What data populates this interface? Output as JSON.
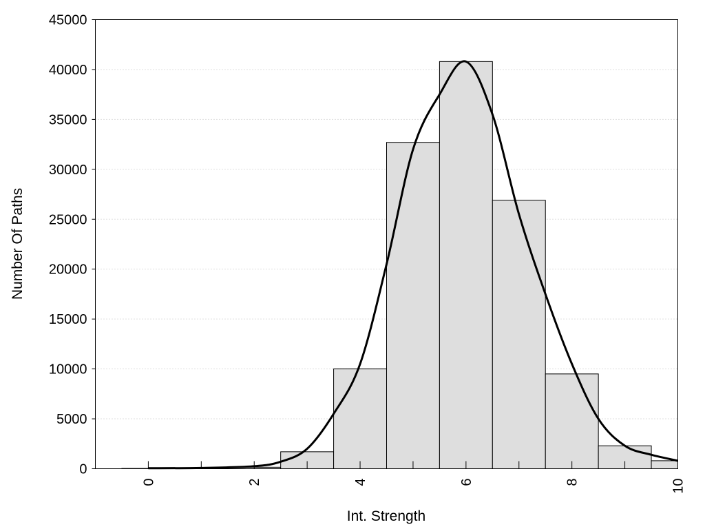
{
  "chart_data": {
    "type": "bar",
    "title": "",
    "xlabel": "Int. Strength",
    "ylabel": "Number Of Paths",
    "xlim": [
      -1,
      10
    ],
    "ylim": [
      0,
      45000
    ],
    "x_ticks": [
      "0",
      "2",
      "4",
      "6",
      "8",
      "10"
    ],
    "y_ticks": [
      "0",
      "5000",
      "10000",
      "15000",
      "20000",
      "25000",
      "30000",
      "35000",
      "40000",
      "45000"
    ],
    "grid": "horizontal dotted",
    "colors": {
      "bar_fill": "#dedede",
      "bar_stroke": "#000000",
      "curve": "#000000"
    },
    "bars": {
      "x": [
        0,
        1,
        2,
        3,
        4,
        5,
        6,
        7,
        8,
        9,
        10
      ],
      "values": [
        30,
        50,
        150,
        1700,
        10000,
        32700,
        40800,
        26900,
        9500,
        2300,
        800
      ]
    },
    "curve": {
      "x": [
        0,
        1,
        2,
        2.5,
        3,
        3.5,
        4,
        4.5,
        5,
        5.5,
        6,
        6.5,
        7,
        7.5,
        8,
        8.5,
        9,
        9.5,
        10
      ],
      "values": [
        50,
        80,
        250,
        700,
        2000,
        5500,
        10500,
        20500,
        32000,
        37500,
        40800,
        35500,
        25500,
        17500,
        10500,
        5000,
        2300,
        1400,
        800
      ]
    }
  }
}
